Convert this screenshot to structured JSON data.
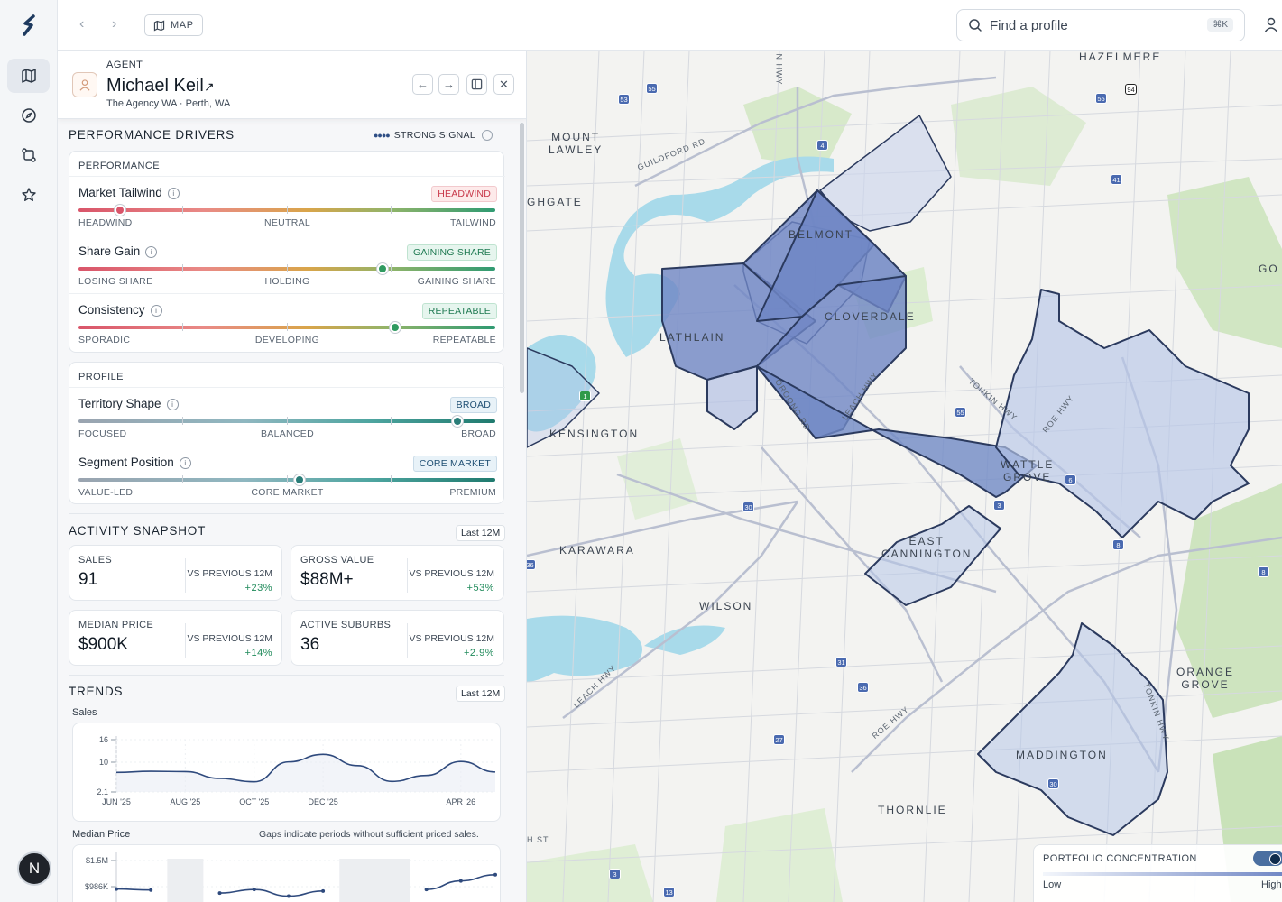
{
  "nav": {
    "map_chip": "MAP",
    "search_placeholder": "Find a profile",
    "search_shortcut": "⌘K",
    "user_initial": "N"
  },
  "profile": {
    "role": "AGENT",
    "name": "Michael Keil",
    "subtitle": "The Agency WA · Perth, WA"
  },
  "performance": {
    "title": "PERFORMANCE DRIVERS",
    "signal": "STRONG SIGNAL",
    "groups": [
      {
        "category": "PERFORMANCE",
        "metrics": [
          {
            "label": "Market Tailwind",
            "tag": "HEADWIND",
            "tag_style": "red",
            "value": 0.1,
            "scale": [
              "HEADWIND",
              "NEUTRAL",
              "TAILWIND"
            ]
          },
          {
            "label": "Share Gain",
            "tag": "GAINING SHARE",
            "tag_style": "green",
            "value": 0.73,
            "scale": [
              "LOSING SHARE",
              "HOLDING",
              "GAINING SHARE"
            ]
          },
          {
            "label": "Consistency",
            "tag": "REPEATABLE",
            "tag_style": "green",
            "value": 0.76,
            "scale": [
              "SPORADIC",
              "DEVELOPING",
              "REPEATABLE"
            ]
          }
        ]
      },
      {
        "category": "PROFILE",
        "metrics": [
          {
            "label": "Territory Shape",
            "tag": "BROAD",
            "tag_style": "blue",
            "value": 0.91,
            "scale": [
              "FOCUSED",
              "BALANCED",
              "BROAD"
            ]
          },
          {
            "label": "Segment Position",
            "tag": "CORE MARKET",
            "tag_style": "blue",
            "value": 0.53,
            "scale": [
              "VALUE-LED",
              "CORE MARKET",
              "PREMIUM"
            ]
          }
        ]
      }
    ]
  },
  "activity": {
    "title": "ACTIVITY SNAPSHOT",
    "period": "Last 12M",
    "stats": [
      {
        "title": "SALES",
        "value": "91",
        "vs": "VS PREVIOUS 12M",
        "delta": "+23%"
      },
      {
        "title": "GROSS VALUE",
        "value": "$88M+",
        "vs": "VS PREVIOUS 12M",
        "delta": "+53%"
      },
      {
        "title": "MEDIAN PRICE",
        "value": "$900K",
        "vs": "VS PREVIOUS 12M",
        "delta": "+14%"
      },
      {
        "title": "ACTIVE SUBURBS",
        "value": "36",
        "vs": "VS PREVIOUS 12M",
        "delta": "+2.9%"
      }
    ]
  },
  "trends": {
    "title": "TRENDS",
    "period": "Last 12M",
    "sales_label": "Sales",
    "median_label": "Median Price",
    "gap_note": "Gaps indicate periods without sufficient priced sales."
  },
  "chart_data": [
    {
      "type": "line",
      "xlabel": "",
      "ylabel": "",
      "x": [
        "JUN '25",
        "JUL '25",
        "AUG '25",
        "SEP '25",
        "OCT '25",
        "NOV '25",
        "DEC '25",
        "JAN '26",
        "FEB '26",
        "MAR '26",
        "APR '26",
        "MAY '26"
      ],
      "x_ticks": [
        "JUN '25",
        "AUG '25",
        "OCT '25",
        "DEC '25",
        "APR '26"
      ],
      "y_ticks": [
        "16",
        "10",
        "2.1"
      ],
      "ylim": [
        2.1,
        16
      ],
      "values": [
        7.3,
        7.6,
        7.5,
        5.7,
        4.8,
        10.1,
        12.1,
        9.1,
        4.9,
        6.5,
        10.2,
        7.4
      ]
    },
    {
      "type": "line",
      "xlabel": "",
      "ylabel": "",
      "y_ticks": [
        "$1.5M",
        "$986K"
      ],
      "values_k": [
        940,
        920,
        null,
        860,
        930,
        800,
        900,
        null,
        null,
        930,
        1100,
        1220
      ]
    }
  ],
  "map": {
    "legend_title": "PORTFOLIO CONCENTRATION",
    "legend_low": "Low",
    "legend_high": "High",
    "labels": [
      {
        "name": "HAZELMERE"
      },
      {
        "name": "MOUNT\nLAWLEY"
      },
      {
        "name": "BELMONT"
      },
      {
        "name": "CLOVERDALE"
      },
      {
        "name": "LATHLAIN"
      },
      {
        "name": "KENSINGTON"
      },
      {
        "name": "WATTLE\nGROVE"
      },
      {
        "name": "EAST\nCANNINGTON"
      },
      {
        "name": "KARAWARA"
      },
      {
        "name": "WILSON"
      },
      {
        "name": "ORANGE\nGROVE"
      },
      {
        "name": "MADDINGTON"
      },
      {
        "name": "THORNLIE"
      },
      {
        "name": "GHGATE"
      },
      {
        "name": "GO"
      }
    ],
    "roads": [
      "GUILDFORD RD",
      "OROONG RD",
      "LEACH HWY",
      "TONKIN HWY",
      "ROE HWY",
      "LEACH HWY",
      "ROE HWY",
      "TONKIN HWY",
      "N HWY",
      "H ST"
    ],
    "shields": [
      "53",
      "55",
      "55",
      "94",
      "4",
      "41",
      "1",
      "55",
      "6",
      "3",
      "8",
      "8",
      "30",
      "31",
      "36",
      "27",
      "30",
      "3",
      "13",
      "36"
    ]
  }
}
